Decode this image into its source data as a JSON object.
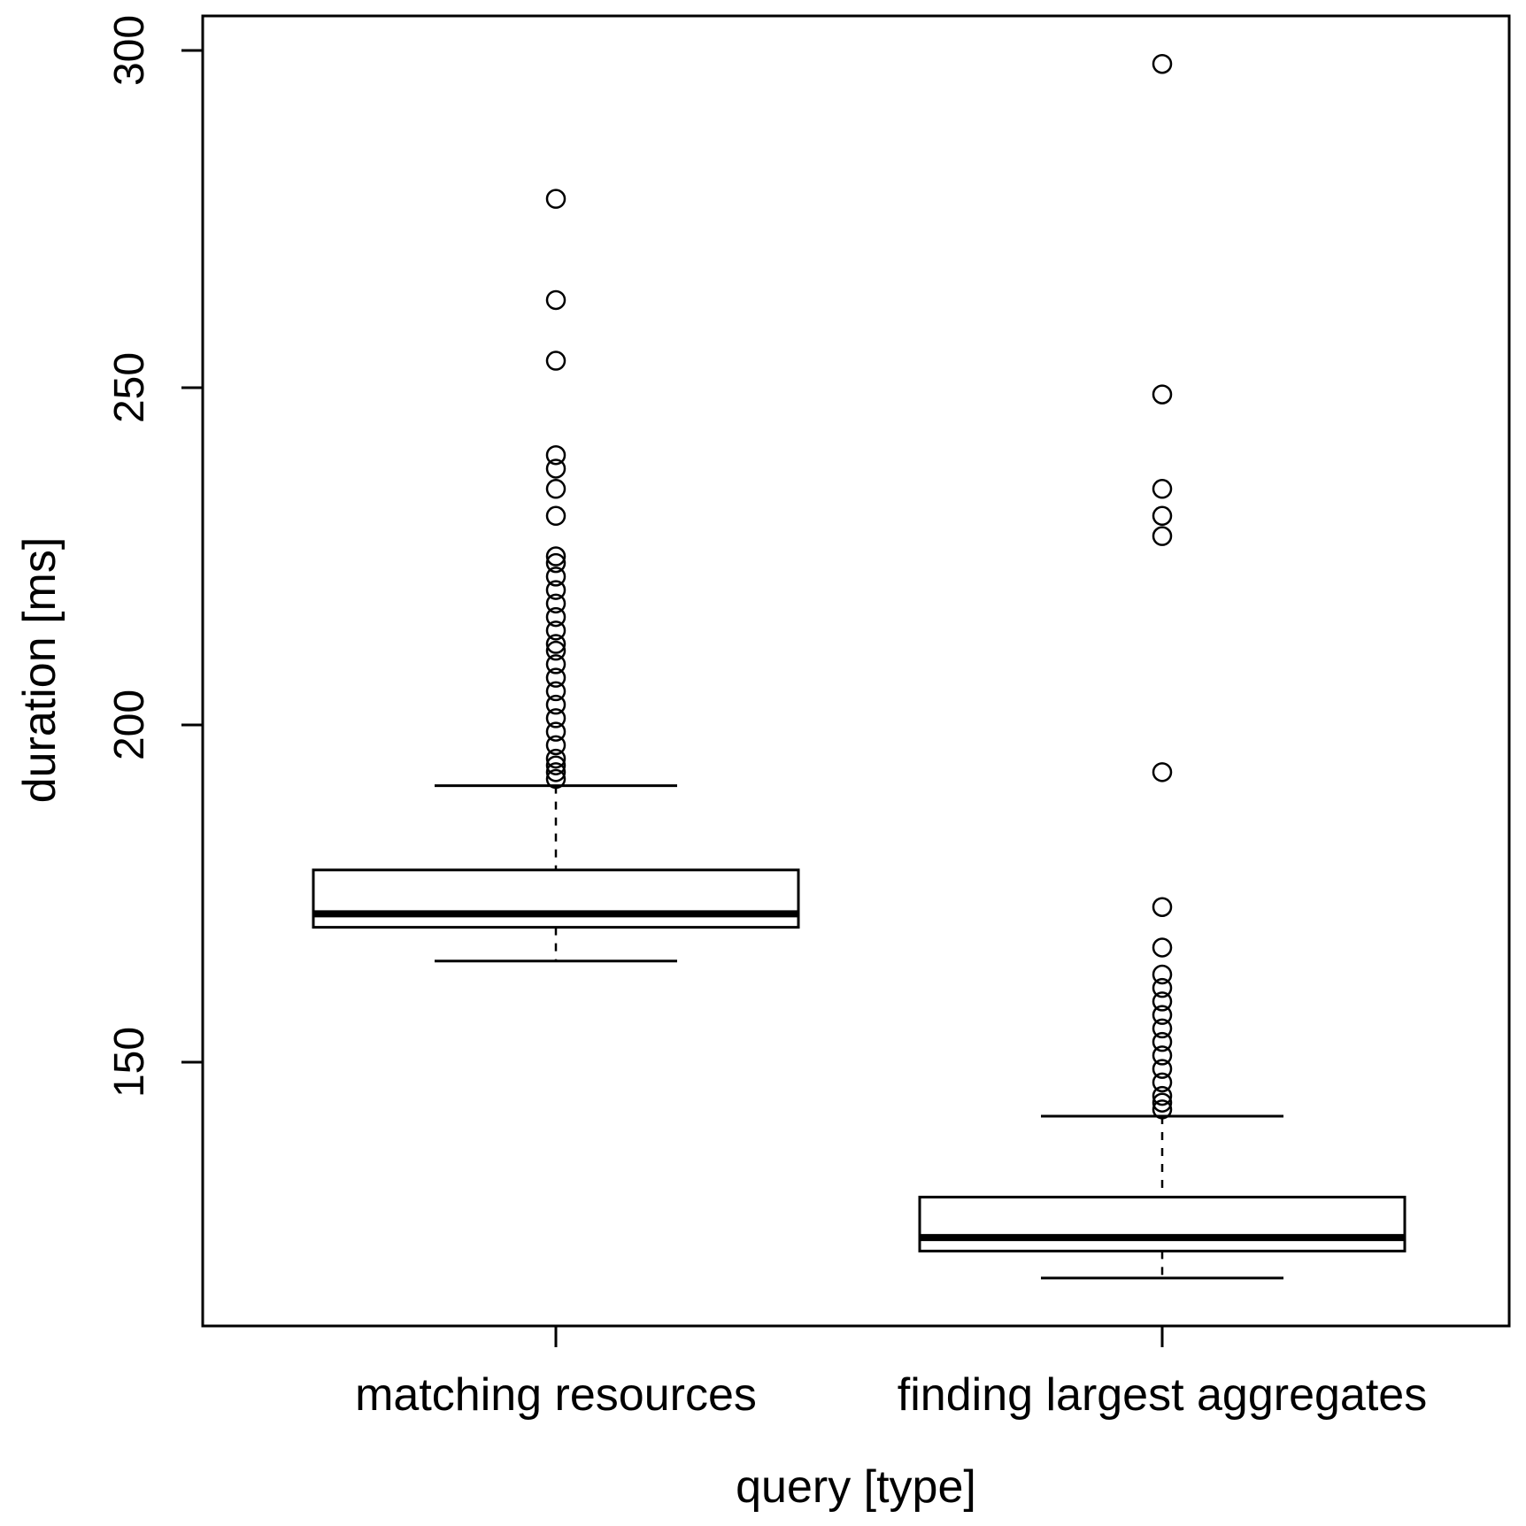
{
  "chart_data": {
    "type": "box",
    "title": "",
    "xlabel": "query [type]",
    "ylabel": "duration [ms]",
    "ylim": [
      111,
      305
    ],
    "yticks": [
      150,
      200,
      250,
      300
    ],
    "categories": [
      "matching resources",
      "finding largest aggregates"
    ],
    "boxes": [
      {
        "category": "matching resources",
        "whisker_low": 165,
        "q1": 170,
        "median": 172,
        "q3": 178.5,
        "whisker_high": 191,
        "outliers": [
          278,
          263,
          254,
          240,
          238,
          235,
          231,
          225,
          224,
          222,
          220,
          218,
          216,
          214,
          212,
          211,
          209,
          207,
          205,
          203,
          201,
          199,
          197,
          195,
          194,
          193,
          192
        ]
      },
      {
        "category": "finding largest aggregates",
        "whisker_low": 118,
        "q1": 122,
        "median": 124,
        "q3": 130,
        "whisker_high": 142,
        "outliers": [
          298,
          249,
          235,
          231,
          228,
          193,
          173,
          167,
          163,
          161,
          159,
          157,
          155,
          153,
          151,
          149,
          147,
          145,
          144,
          143
        ]
      }
    ]
  }
}
